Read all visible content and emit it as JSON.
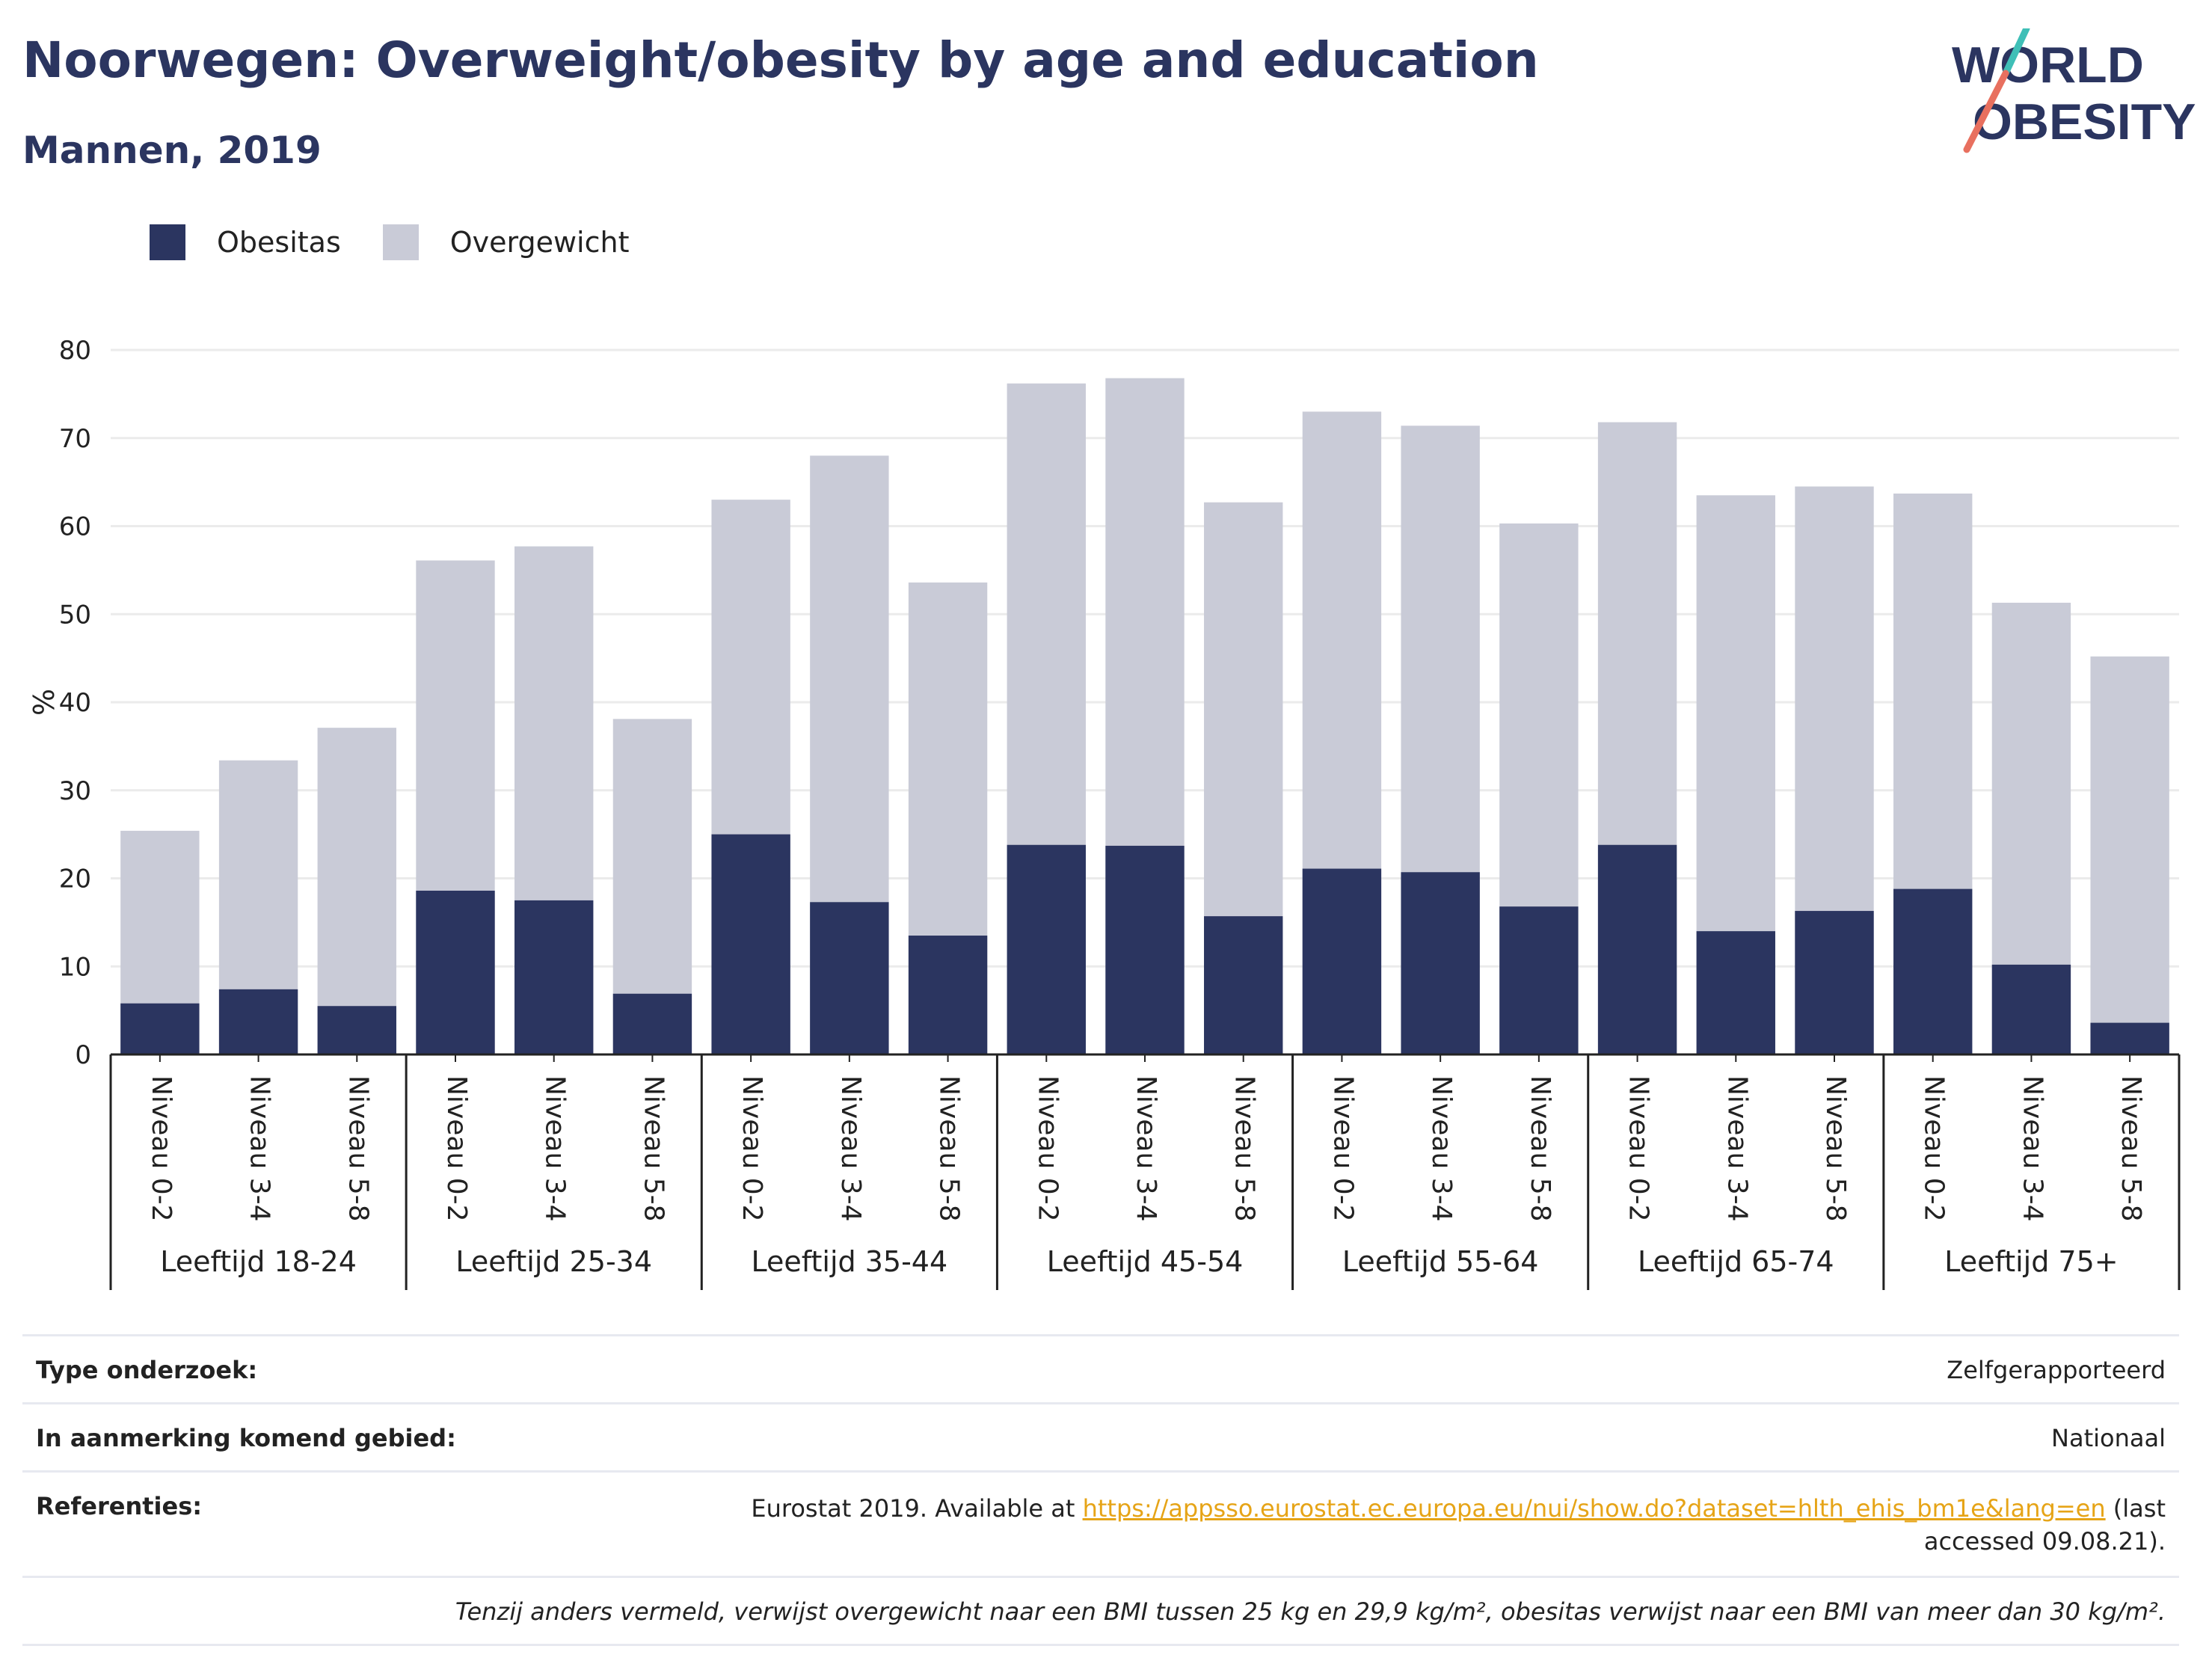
{
  "header": {
    "title": "Noorwegen: Overweight/obesity by age and education",
    "subtitle": "Mannen, 2019"
  },
  "logo": {
    "line1": "WORLD",
    "line2": "OBESITY"
  },
  "legend": [
    {
      "label": "Obesitas",
      "color": "#2b3560"
    },
    {
      "label": "Overgewicht",
      "color": "#c9cbd7"
    }
  ],
  "chart_data": {
    "type": "bar",
    "stacking": "overlay",
    "ylabel": "%",
    "ylim": [
      0,
      80
    ],
    "yticks": [
      0,
      10,
      20,
      30,
      40,
      50,
      60,
      70,
      80
    ],
    "grid": true,
    "legend_position": "top-left",
    "groups": [
      "Leeftijd 18-24",
      "Leeftijd 25-34",
      "Leeftijd 35-44",
      "Leeftijd 45-54",
      "Leeftijd 55-64",
      "Leeftijd 65-74",
      "Leeftijd 75+"
    ],
    "subcategories": [
      "Niveau 0-2",
      "Niveau 3-4",
      "Niveau 5-8"
    ],
    "series": [
      {
        "name": "Overgewicht",
        "color": "#c9cbd7",
        "values": [
          25.4,
          33.4,
          37.1,
          56.1,
          57.7,
          38.1,
          63.0,
          68.0,
          53.6,
          76.2,
          76.8,
          62.7,
          73.0,
          71.4,
          60.3,
          71.8,
          63.5,
          64.5,
          63.7,
          51.3,
          45.2
        ]
      },
      {
        "name": "Obesitas",
        "color": "#2b3560",
        "values": [
          5.8,
          7.4,
          5.5,
          18.6,
          17.5,
          6.9,
          25.0,
          17.3,
          13.5,
          23.8,
          23.7,
          15.7,
          21.1,
          20.7,
          16.8,
          23.8,
          14.0,
          16.3,
          18.8,
          10.2,
          3.6
        ]
      }
    ]
  },
  "info": {
    "type_label": "Type onderzoek:",
    "type_value": "Zelfgerapporteerd",
    "area_label": "In aanmerking komend gebied:",
    "area_value": "Nationaal",
    "ref_label": "Referenties:",
    "ref_prefix": "Eurostat 2019. Available at ",
    "ref_link": "https://appsso.eurostat.ec.europa.eu/nui/show.do?dataset=hlth_ehis_bm1e&lang=en",
    "ref_suffix": " (last accessed 09.08.21).",
    "note": "Tenzij anders vermeld, verwijst overgewicht naar een BMI tussen 25 kg en 29,9 kg/m², obesitas verwijst naar een BMI van meer dan 30 kg/m²."
  }
}
